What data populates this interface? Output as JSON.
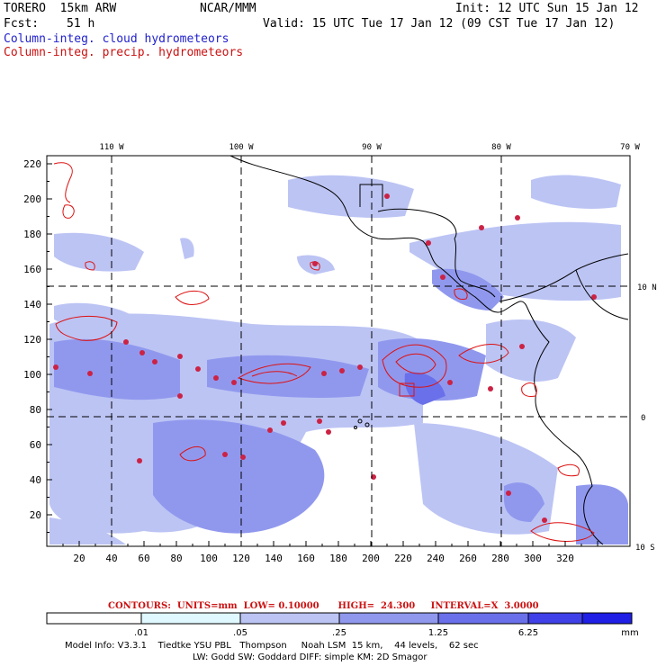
{
  "header": {
    "model": "TORERO  15km ARW",
    "org": "NCAR/MMM",
    "init": "Init: 12 UTC Sun 15 Jan 12",
    "fcst_label": "Fcst:",
    "fcst_value": "51 h",
    "valid": "Valid: 15 UTC Tue 17 Jan 12 (09 CST Tue 17 Jan 12)",
    "field1": "Column-integ. cloud hydrometeors",
    "field2": "Column-integ. precip. hydrometeors"
  },
  "axes": {
    "top_lon_labels": [
      "110 W",
      "100 W",
      "90 W",
      "80 W",
      "70 W"
    ],
    "right_lat_labels": [
      "10 N",
      "0",
      "10 S"
    ],
    "y_ticks": [
      "220",
      "200",
      "180",
      "160",
      "140",
      "120",
      "100",
      "80",
      "60",
      "40",
      "20"
    ],
    "x_ticks": [
      "20",
      "40",
      "60",
      "80",
      "100",
      "120",
      "140",
      "160",
      "180",
      "200",
      "220",
      "240",
      "260",
      "280",
      "300",
      "320"
    ]
  },
  "contours_info": "CONTOURS:  UNITS=mm  LOW= 0.10000      HIGH=  24.300     INTERVAL=X  3.0000",
  "colorbar": {
    "labels": [
      ".01",
      ".05",
      ".25",
      "1.25",
      "6.25"
    ],
    "unit": "mm",
    "colors": [
      "#ffffff",
      "#e0f8ff",
      "#bcc4f4",
      "#9098ee",
      "#6a70ea",
      "#4040e8",
      "#1f1fe6"
    ]
  },
  "model_info": {
    "line1": "Model Info: V3.3.1    Tiedtke YSU PBL   Thompson     Noah LSM  15 km,    44 levels,    62 sec",
    "line2": "LW: Godd SW: Goddard DIFF: simple KM: 2D Smagor"
  },
  "colors": {
    "cloud_light": "#bcc4f4",
    "cloud_mid": "#9098ee",
    "cloud_dark": "#6a70ea",
    "precip": "#dd1111",
    "coast": "#000000"
  }
}
